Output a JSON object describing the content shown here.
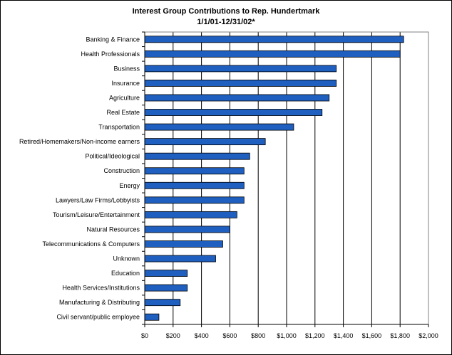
{
  "chart_data": {
    "type": "bar",
    "orientation": "horizontal",
    "title": "Interest Group Contributions to Rep. Hundertmark",
    "subtitle": "1/1/01-12/31/02*",
    "xlabel": "",
    "ylabel": "",
    "xlim": [
      0,
      2000
    ],
    "x_ticks": [
      "$0",
      "$200",
      "$400",
      "$600",
      "$800",
      "$1,000",
      "$1,200",
      "$1,400",
      "$1,600",
      "$1,800",
      "$2,000"
    ],
    "x_tick_values": [
      0,
      200,
      400,
      600,
      800,
      1000,
      1200,
      1400,
      1600,
      1800,
      2000
    ],
    "grid": true,
    "legend": "none",
    "bar_color": "#1F5FBF",
    "categories": [
      "Banking & Finance",
      "Health Professionals",
      "Business",
      "Insurance",
      "Agriculture",
      "Real Estate",
      "Transportation",
      "Retired/Homemakers/Non-income earners",
      "Political/Ideological",
      "Construction",
      "Energy",
      "Lawyers/Law Firms/Lobbyists",
      "Tourism/Leisure/Entertainment",
      "Natural Resources",
      "Telecommunications & Computers",
      "Unknown",
      "Education",
      "Health Services/Institutions",
      "Manufacturing & Distributing",
      "Civil servant/public employee"
    ],
    "values": [
      1825,
      1800,
      1350,
      1350,
      1300,
      1250,
      1050,
      850,
      740,
      700,
      700,
      700,
      650,
      600,
      550,
      500,
      300,
      300,
      250,
      100
    ]
  }
}
